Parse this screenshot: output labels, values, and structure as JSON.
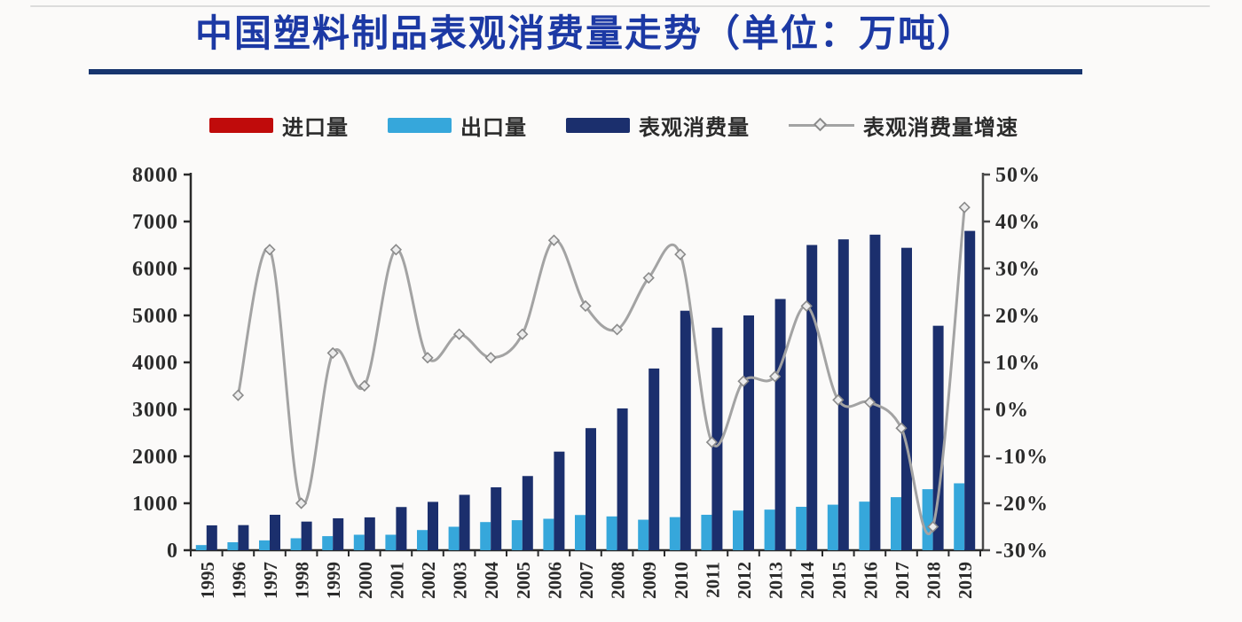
{
  "page": {
    "title": "中国塑料制品表观消费量走势（单位：万吨）"
  },
  "legend": [
    {
      "id": "import",
      "label": "进口量",
      "type": "bar",
      "color": "#c00b0b"
    },
    {
      "id": "export",
      "label": "出口量",
      "type": "bar",
      "color": "#36a7db"
    },
    {
      "id": "consumption",
      "label": "表观消费量",
      "type": "bar",
      "color": "#1b2f6d"
    },
    {
      "id": "growth",
      "label": "表观消费量增速",
      "type": "line",
      "color": "#a3a3a3"
    }
  ],
  "chart_data": {
    "type": "bar+line combo",
    "title": "中国塑料制品表观消费量走势（单位：万吨）",
    "categories": [
      "1995",
      "1996",
      "1997",
      "1998",
      "1999",
      "2000",
      "2001",
      "2002",
      "2003",
      "2004",
      "2005",
      "2006",
      "2007",
      "2008",
      "2009",
      "2010",
      "2011",
      "2012",
      "2013",
      "2014",
      "2015",
      "2016",
      "2017",
      "2018",
      "2019"
    ],
    "series": [
      {
        "name": "进口量",
        "type": "bar",
        "axis": "left",
        "color": "#c00b0b",
        "visible_in_plot": false,
        "values": []
      },
      {
        "name": "出口量",
        "type": "bar",
        "axis": "left",
        "color": "#36a7db",
        "values": [
          110,
          170,
          210,
          255,
          300,
          330,
          330,
          430,
          500,
          600,
          640,
          670,
          750,
          720,
          650,
          705,
          755,
          845,
          865,
          925,
          970,
          1035,
          1130,
          1300,
          1425
        ]
      },
      {
        "name": "表观消费量",
        "type": "bar",
        "axis": "left",
        "color": "#1b2f6d",
        "values": [
          530,
          535,
          755,
          610,
          680,
          700,
          920,
          1030,
          1180,
          1340,
          1580,
          2100,
          2600,
          3020,
          3870,
          5100,
          4740,
          5000,
          5350,
          6500,
          6620,
          6720,
          6440,
          4780,
          6800
        ]
      },
      {
        "name": "表观消费量增速",
        "type": "line",
        "axis": "right",
        "color": "#a3a3a3",
        "marker": "diamond",
        "values": [
          null,
          3,
          34,
          -20,
          12,
          5,
          34,
          11,
          16,
          11,
          16,
          36,
          22,
          17,
          28,
          33,
          -7,
          6,
          7,
          22,
          2,
          1.5,
          -4,
          -25,
          43
        ]
      }
    ],
    "left_axis": {
      "min": 0,
      "max": 8000,
      "step": 1000,
      "ticks": [
        "0",
        "1000",
        "2000",
        "3000",
        "4000",
        "5000",
        "6000",
        "7000",
        "8000"
      ]
    },
    "right_axis": {
      "min": -30,
      "max": 50,
      "step": 10,
      "suffix": "%",
      "ticks": [
        "-30%",
        "-20%",
        "-10%",
        "0%",
        "10%",
        "20%",
        "30%",
        "40%",
        "50%"
      ]
    },
    "grid": false,
    "legend_position": "top"
  }
}
